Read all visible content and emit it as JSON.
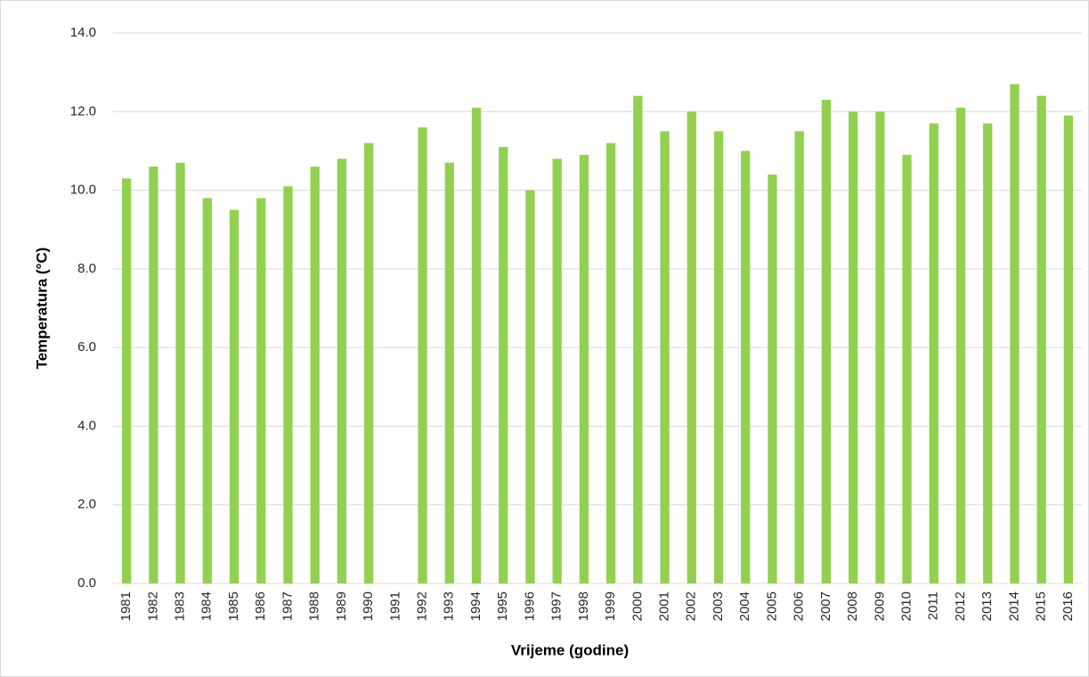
{
  "chart_data": {
    "type": "bar",
    "x_label": "Vrijeme (godine)",
    "y_label": "Temperatura (°C)",
    "categories": [
      "1981",
      "1982",
      "1983",
      "1984",
      "1985",
      "1986",
      "1987",
      "1988",
      "1989",
      "1990",
      "1991",
      "1992",
      "1993",
      "1994",
      "1995",
      "1996",
      "1997",
      "1998",
      "1999",
      "2000",
      "2001",
      "2002",
      "2003",
      "2004",
      "2005",
      "2006",
      "2007",
      "2008",
      "2009",
      "2010",
      "2011",
      "2012",
      "2013",
      "2014",
      "2015",
      "2016"
    ],
    "values": [
      10.3,
      10.6,
      10.7,
      9.8,
      9.5,
      9.8,
      10.1,
      10.6,
      10.8,
      11.2,
      null,
      11.6,
      10.7,
      12.1,
      11.1,
      10.0,
      10.8,
      10.9,
      11.2,
      12.4,
      11.5,
      12.0,
      11.5,
      11.0,
      10.4,
      11.5,
      12.3,
      12.0,
      12.0,
      10.9,
      11.7,
      12.1,
      11.7,
      12.7,
      12.4,
      11.9
    ],
    "color": "#92d050",
    "ylim": [
      0,
      14
    ],
    "yticks": [
      {
        "value": 0,
        "label": "0.0"
      },
      {
        "value": 2,
        "label": "2.0"
      },
      {
        "value": 4,
        "label": "4.0"
      },
      {
        "value": 6,
        "label": "6.0"
      },
      {
        "value": 8,
        "label": "8.0"
      },
      {
        "value": 10,
        "label": "10.0"
      },
      {
        "value": 12,
        "label": "12.0"
      },
      {
        "value": 14,
        "label": "14.0"
      }
    ],
    "grid": true
  }
}
